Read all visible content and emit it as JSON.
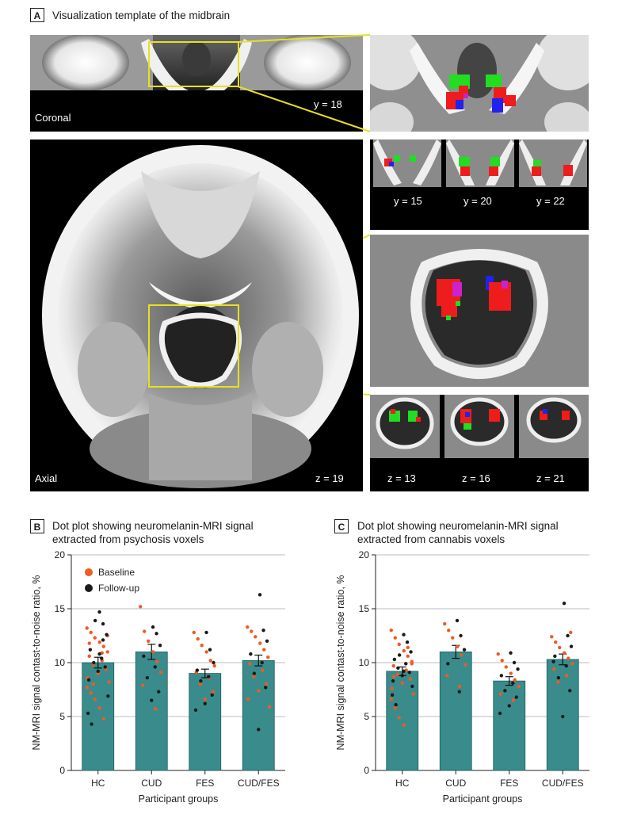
{
  "panel_a": {
    "letter": "A",
    "title": "Visualization template of the midbrain",
    "coronal_label": "Coronal",
    "coronal_slice": "y = 18",
    "axial_label": "Axial",
    "axial_slice": "z = 19",
    "coronal_slices": [
      "y = 15",
      "y = 20",
      "y = 22"
    ],
    "axial_slices": [
      "z = 13",
      "z = 16",
      "z = 21"
    ],
    "colors": {
      "psychosis": "#ee1c1c",
      "cannabis": "#22dd22",
      "overlap": "#2222ee",
      "box": "#e8e020"
    }
  },
  "panel_b": {
    "letter": "B",
    "title_line1": "Dot plot showing neuromelanin-MRI signal",
    "title_line2": "extracted from psychosis voxels"
  },
  "panel_c": {
    "letter": "C",
    "title_line1": "Dot plot showing neuromelanin-MRI signal",
    "title_line2": "extracted from cannabis voxels"
  },
  "legend": {
    "baseline": "Baseline",
    "followup": "Follow-up"
  },
  "colors": {
    "bar": "#3a8c8c",
    "bar_edge": "#1f5e5e",
    "baseline": "#f05a23",
    "followup": "#1a1a1a",
    "grid": "#bdbdbd"
  },
  "chart_data": [
    {
      "type": "bar",
      "panel": "B",
      "title": "Dot plot showing neuromelanin-MRI signal extracted from psychosis voxels",
      "xlabel": "Participant groups",
      "ylabel": "NM-MRI signal contast-to-noise ratio, %",
      "ylim": [
        0,
        20
      ],
      "yticks": [
        0,
        5,
        10,
        15,
        20
      ],
      "categories": [
        "HC",
        "CUD",
        "FES",
        "CUD/FES"
      ],
      "values": [
        10.0,
        11.0,
        9.0,
        10.2
      ],
      "sem": [
        0.5,
        0.7,
        0.4,
        0.5
      ],
      "points": [
        {
          "baseline": [
            13.2,
            12.8,
            12.3,
            11.9,
            11.5,
            11.0,
            10.6,
            10.2,
            9.8,
            9.4,
            9.0,
            8.6,
            8.2,
            7.7,
            7.2,
            6.6,
            5.8,
            4.8,
            12.5,
            11.8,
            10.9,
            8.0
          ],
          "followup": [
            14.7,
            13.6,
            12.6,
            11.2,
            10.4,
            10.0,
            9.6,
            9.2,
            8.4,
            6.9,
            5.3,
            4.3,
            13.9,
            10.8,
            12.1
          ]
        },
        {
          "baseline": [
            15.2,
            12.9,
            12.0,
            11.0,
            10.1,
            9.1,
            7.9,
            5.7
          ],
          "followup": [
            13.3,
            12.7,
            11.6,
            10.6,
            9.6,
            8.6,
            7.3,
            6.5
          ]
        },
        {
          "baseline": [
            12.8,
            12.2,
            11.6,
            11.0,
            10.2,
            9.7,
            9.1,
            8.6,
            8.0,
            7.3,
            6.6
          ],
          "followup": [
            12.8,
            11.2,
            10.0,
            9.3,
            8.7,
            8.3,
            7.0,
            6.2,
            5.6
          ]
        },
        {
          "baseline": [
            13.3,
            12.9,
            12.4,
            11.8,
            11.2,
            10.5,
            9.9,
            9.3,
            8.7,
            8.0,
            7.4,
            6.6,
            5.9
          ],
          "followup": [
            16.3,
            13.0,
            12.0,
            10.8,
            10.0,
            9.0,
            7.7,
            3.8
          ]
        }
      ]
    },
    {
      "type": "bar",
      "panel": "C",
      "title": "Dot plot showing neuromelanin-MRI signal extracted from cannabis voxels",
      "xlabel": "Participant groups",
      "ylabel": "NM-MRI signal contast-to-noise ratio, %",
      "ylim": [
        0,
        20
      ],
      "yticks": [
        0,
        5,
        10,
        15,
        20
      ],
      "categories": [
        "HC",
        "CUD",
        "FES",
        "CUD/FES"
      ],
      "values": [
        9.2,
        11.0,
        8.3,
        10.3
      ],
      "sem": [
        0.4,
        0.6,
        0.4,
        0.5
      ],
      "points": [
        {
          "baseline": [
            13.0,
            12.3,
            11.7,
            11.1,
            10.6,
            10.1,
            9.7,
            9.3,
            8.9,
            8.5,
            8.1,
            7.6,
            7.1,
            6.6,
            5.8,
            4.9,
            4.2,
            11.4,
            9.9,
            8.7
          ],
          "followup": [
            12.6,
            11.9,
            11.0,
            10.3,
            9.9,
            9.5,
            9.1,
            8.8,
            8.3,
            7.8,
            7.0,
            6.1,
            10.7,
            9.2
          ]
        },
        {
          "baseline": [
            13.6,
            13.0,
            12.3,
            11.5,
            10.7,
            9.8,
            8.8,
            7.8
          ],
          "followup": [
            13.9,
            12.5,
            11.2,
            9.9,
            7.3
          ]
        },
        {
          "baseline": [
            10.8,
            10.2,
            9.6,
            9.0,
            8.4,
            7.8,
            7.1,
            6.5
          ],
          "followup": [
            10.9,
            10.0,
            9.4,
            8.8,
            8.1,
            7.4,
            6.8,
            6.0,
            5.3
          ]
        },
        {
          "baseline": [
            12.4,
            11.9,
            11.4,
            10.9,
            10.4,
            9.9,
            9.4,
            8.8,
            8.2,
            12.8
          ],
          "followup": [
            15.5,
            12.5,
            11.5,
            10.6,
            9.7,
            8.6,
            7.4,
            5.0,
            10.1
          ]
        }
      ]
    }
  ]
}
